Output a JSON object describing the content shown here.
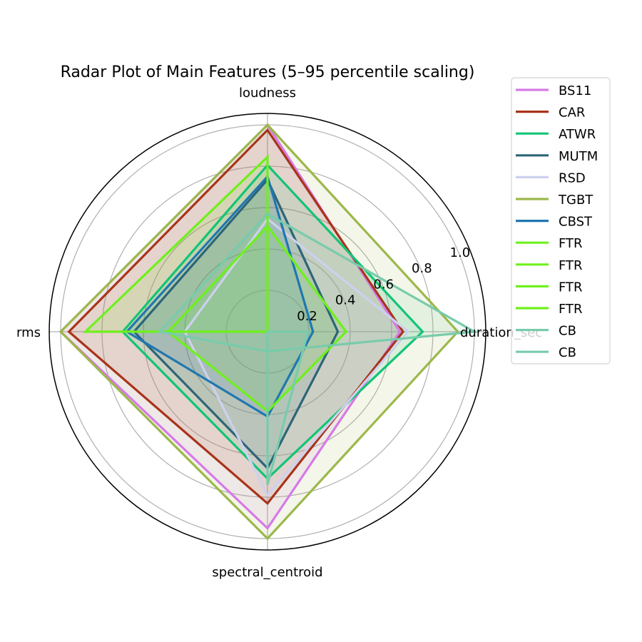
{
  "chart_data": {
    "type": "radar",
    "title": "Radar Plot of Main Features (5–95 percentile scaling)",
    "axes": [
      "loudness",
      "duration_sec",
      "spectral_centroid",
      "rms"
    ],
    "radial_ticks": [
      "0.2",
      "0.4",
      "0.6",
      "0.8",
      "1.0"
    ],
    "radial_tick_values": [
      0.2,
      0.4,
      0.6,
      0.8,
      1.0
    ],
    "rlim": [
      0,
      1.055
    ],
    "grid": true,
    "legend_position": "upper right, outside",
    "series": [
      {
        "name": "BS11",
        "color": "#d67ae6",
        "values": [
          1.0,
          0.64,
          0.95,
          1.0
        ]
      },
      {
        "name": "CAR",
        "color": "#a8341a",
        "values": [
          0.975,
          0.655,
          0.83,
          0.96
        ]
      },
      {
        "name": "ATWR",
        "color": "#12c476",
        "values": [
          0.805,
          0.75,
          0.71,
          0.7
        ]
      },
      {
        "name": "MUTM",
        "color": "#2d6579",
        "values": [
          0.735,
          0.34,
          0.66,
          0.645
        ]
      },
      {
        "name": "RSD",
        "color": "#cdd1ee",
        "values": [
          0.545,
          0.68,
          0.79,
          0.4
        ]
      },
      {
        "name": "TGBT",
        "color": "#9cb84a",
        "values": [
          1.0,
          0.92,
          1.0,
          1.0
        ]
      },
      {
        "name": "CBST",
        "color": "#2077b0",
        "values": [
          0.75,
          0.22,
          0.41,
          0.68
        ]
      },
      {
        "name": "FTR",
        "color": "#6ef01b",
        "values": [
          0.845,
          0.0,
          0.0,
          0.88
        ]
      },
      {
        "name": "FTR",
        "color": "#6ef01b",
        "values": [
          0.51,
          0.38,
          0.385,
          0.48
        ]
      },
      {
        "name": "FTR",
        "color": "#6ef01b",
        "values": [
          0.0,
          0.0,
          0.0,
          0.0
        ]
      },
      {
        "name": "FTR",
        "color": "#6ef01b",
        "values": [
          0.0,
          0.0,
          0.0,
          0.0
        ]
      },
      {
        "name": "CB",
        "color": "#78cbab",
        "values": [
          0.57,
          1.0,
          0.095,
          0.52
        ]
      },
      {
        "name": "CB",
        "color": "#78cbab",
        "values": [
          0.0,
          0.195,
          0.74,
          0.0
        ]
      }
    ]
  }
}
